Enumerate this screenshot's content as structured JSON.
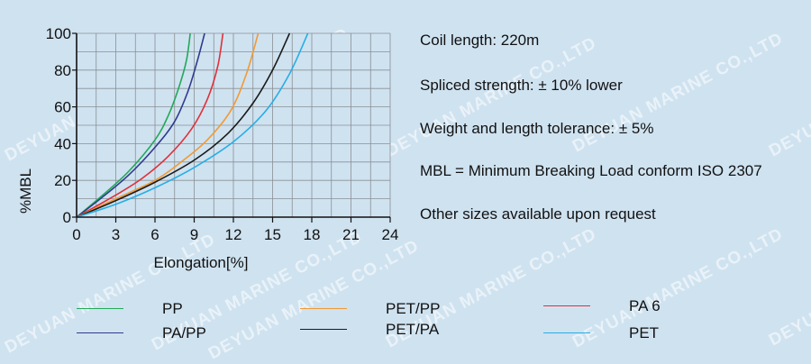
{
  "watermark": "DEYUAN MARINE CO.,LTD",
  "chart_data": {
    "type": "line",
    "xlabel": "Elongation[%]",
    "ylabel": "%MBL",
    "xlim": [
      0,
      24
    ],
    "ylim": [
      0,
      100
    ],
    "xticks": [
      0,
      3,
      6,
      9,
      12,
      15,
      18,
      21,
      24
    ],
    "yticks": [
      0,
      20,
      40,
      60,
      80,
      100
    ],
    "grid": true,
    "series": [
      {
        "name": "PP",
        "color": "#22a85a",
        "x": [
          0,
          2,
          4,
          6,
          7,
          7.8,
          8.4,
          8.7
        ],
        "y": [
          0,
          12,
          25,
          42,
          55,
          70,
          85,
          100
        ]
      },
      {
        "name": "PA/PP",
        "color": "#2f3a8f",
        "x": [
          0,
          2,
          4,
          6,
          7.5,
          8.5,
          9.2,
          9.8
        ],
        "y": [
          0,
          11,
          23,
          38,
          52,
          68,
          84,
          100
        ]
      },
      {
        "name": "PA 6",
        "color": "#e0303a",
        "x": [
          0,
          3,
          5,
          7,
          8.8,
          10,
          10.8,
          11.2
        ],
        "y": [
          0,
          12,
          21,
          33,
          48,
          64,
          82,
          100
        ]
      },
      {
        "name": "PET/PP",
        "color": "#f19a35",
        "x": [
          0,
          3,
          6,
          8,
          10,
          11.8,
          13,
          13.9
        ],
        "y": [
          0,
          10,
          20,
          30,
          42,
          58,
          78,
          100
        ]
      },
      {
        "name": "PET/PA",
        "color": "#1a1a1a",
        "x": [
          0,
          3,
          6,
          9,
          11.5,
          13.5,
          15,
          16.3
        ],
        "y": [
          0,
          9,
          19,
          31,
          45,
          62,
          80,
          100
        ]
      },
      {
        "name": "PET",
        "color": "#27aee6",
        "x": [
          0,
          3,
          6,
          9,
          12,
          14.5,
          16.3,
          17.7
        ],
        "y": [
          0,
          7,
          16,
          27,
          41,
          58,
          78,
          100
        ]
      }
    ]
  },
  "notes": [
    "Coil length: 220m",
    "Spliced strength: ± 10% lower",
    "Weight and length tolerance: ± 5%",
    "MBL = Minimum Breaking Load conform ISO 2307",
    "Other sizes available upon request"
  ],
  "legend": [
    {
      "label": "PP",
      "color": "#22a85a"
    },
    {
      "label": "PA/PP",
      "color": "#2f3a8f"
    },
    {
      "label": "PET/PP",
      "color": "#f19a35"
    },
    {
      "label": "PET/PA",
      "color": "#1a1a1a"
    },
    {
      "label": "PA 6",
      "color": "#e0303a"
    },
    {
      "label": "PET",
      "color": "#27aee6"
    }
  ]
}
